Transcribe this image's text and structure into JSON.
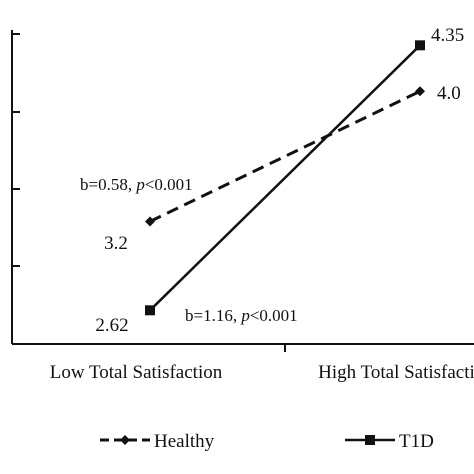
{
  "chart_data": {
    "type": "line",
    "categories": [
      "Low Total Satisfaction",
      "High Total Satisfaction"
    ],
    "ylim": [
      2.4,
      4.45
    ],
    "series": [
      {
        "name": "Healthy",
        "values": [
          3.2,
          4.05
        ],
        "style": "dashed",
        "marker": "diamond",
        "color": "#111111",
        "labels": [
          "3.2",
          "4.0"
        ]
      },
      {
        "name": "T1D",
        "values": [
          2.62,
          4.35
        ],
        "style": "solid",
        "marker": "square",
        "color": "#111111",
        "labels": [
          "2.62",
          "4.35"
        ]
      }
    ],
    "annotations": [
      {
        "prefix": "b=0.58, ",
        "p": "p",
        "suffix": "<0.001"
      },
      {
        "prefix": "b=1.16, ",
        "p": "p",
        "suffix": "<0.001"
      }
    ],
    "legend_placement": "bottom",
    "grid": false
  }
}
